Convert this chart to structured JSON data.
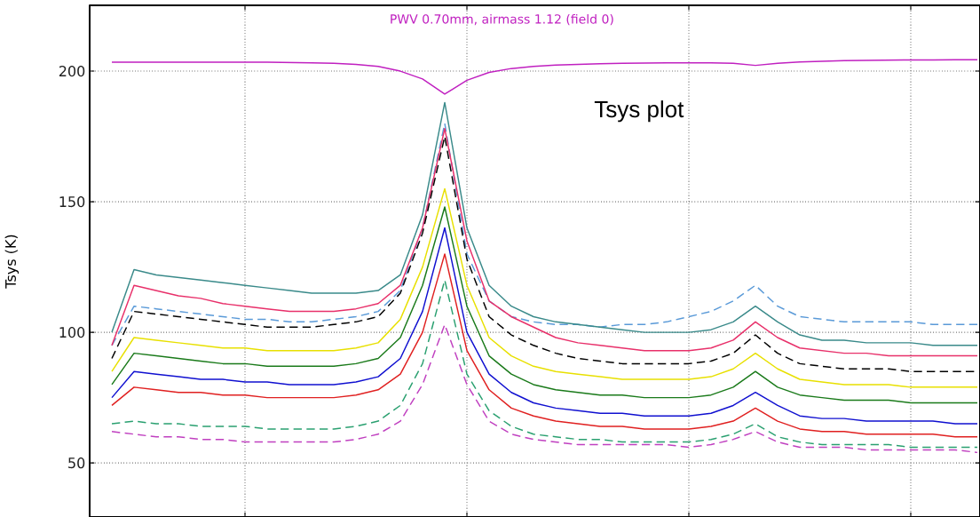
{
  "chart_data": {
    "type": "line",
    "ylabel": "Tsys (K)",
    "annotations": [
      "PWV 0.70mm, airmass 1.12 (field 0)",
      "Tsys plot"
    ],
    "categories": [
      null,
      null,
      null,
      null,
      null,
      null,
      null,
      null,
      null,
      null,
      null,
      null,
      null,
      null,
      null,
      null,
      null,
      null,
      null,
      null,
      null,
      null,
      null,
      null,
      null,
      null,
      null,
      null,
      null,
      null,
      null,
      null,
      null,
      null,
      null,
      null,
      null,
      null,
      null,
      null
    ],
    "ylim": [
      29.3,
      225.2
    ],
    "yticks": [
      50,
      100,
      150,
      200
    ],
    "grid": true,
    "tick_labels": "y",
    "marker": "none",
    "series": [
      {
        "color": "#c020c0",
        "values": [
          203.4,
          203.4,
          203.4,
          203.4,
          203.4,
          203.4,
          203.4,
          203.4,
          203.3,
          203.2,
          203.0,
          202.6,
          201.8,
          200.0,
          197.0,
          191.2,
          196.5,
          199.5,
          201.0,
          201.8,
          202.3,
          202.6,
          202.8,
          203.0,
          203.1,
          203.2,
          203.2,
          203.2,
          203.0,
          202.2,
          203.0,
          203.5,
          203.8,
          204.0,
          204.1,
          204.2,
          204.3,
          204.3,
          204.4,
          204.4
        ]
      },
      {
        "color": "#5a9ad8",
        "line_style": "dashed",
        "values": [
          95,
          110,
          109,
          108,
          107,
          106,
          105,
          105,
          104,
          104,
          105,
          106,
          108,
          116,
          140,
          180,
          130,
          112,
          106,
          104,
          103,
          103,
          102,
          103,
          103,
          104,
          106,
          108,
          112,
          118,
          110,
          106,
          105,
          104,
          104,
          104,
          104,
          103,
          103,
          103
        ]
      },
      {
        "color": "#3a8a8a",
        "values": [
          100,
          124,
          122,
          121,
          120,
          119,
          118,
          117,
          116,
          115,
          115,
          115,
          116,
          122,
          145,
          188,
          140,
          118,
          110,
          106,
          104,
          103,
          102,
          101,
          100,
          100,
          100,
          101,
          104,
          110,
          104,
          99,
          97,
          97,
          96,
          96,
          96,
          95,
          95,
          95
        ]
      },
      {
        "color": "#e8306a",
        "values": [
          95,
          118,
          116,
          114,
          113,
          111,
          110,
          109,
          108,
          108,
          108,
          109,
          111,
          118,
          140,
          178,
          135,
          112,
          106,
          102,
          98,
          96,
          95,
          94,
          93,
          93,
          93,
          94,
          97,
          104,
          98,
          94,
          93,
          92,
          92,
          91,
          91,
          91,
          91,
          91
        ]
      },
      {
        "color": "#000000",
        "line_style": "dashed",
        "values": [
          90,
          108,
          107,
          106,
          105,
          104,
          103,
          102,
          102,
          102,
          103,
          104,
          106,
          115,
          138,
          175,
          128,
          106,
          99,
          95,
          92,
          90,
          89,
          88,
          88,
          88,
          88,
          89,
          92,
          99,
          92,
          88,
          87,
          86,
          86,
          86,
          85,
          85,
          85,
          85
        ]
      },
      {
        "color": "#e8e000",
        "values": [
          85,
          98,
          97,
          96,
          95,
          94,
          94,
          93,
          93,
          93,
          93,
          94,
          96,
          105,
          125,
          155,
          118,
          98,
          91,
          87,
          85,
          84,
          83,
          82,
          82,
          82,
          82,
          83,
          86,
          92,
          86,
          82,
          81,
          80,
          80,
          80,
          79,
          79,
          79,
          79
        ]
      },
      {
        "color": "#1a7a1a",
        "values": [
          80,
          92,
          91,
          90,
          89,
          88,
          88,
          87,
          87,
          87,
          87,
          88,
          90,
          98,
          118,
          148,
          110,
          91,
          84,
          80,
          78,
          77,
          76,
          76,
          75,
          75,
          75,
          76,
          79,
          85,
          79,
          76,
          75,
          74,
          74,
          74,
          73,
          73,
          73,
          73
        ]
      },
      {
        "color": "#1010d0",
        "values": [
          75,
          85,
          84,
          83,
          82,
          82,
          81,
          81,
          80,
          80,
          80,
          81,
          83,
          90,
          108,
          140,
          100,
          84,
          77,
          73,
          71,
          70,
          69,
          69,
          68,
          68,
          68,
          69,
          72,
          77,
          72,
          68,
          67,
          67,
          66,
          66,
          66,
          66,
          65,
          65
        ]
      },
      {
        "color": "#e02020",
        "values": [
          72,
          79,
          78,
          77,
          77,
          76,
          76,
          75,
          75,
          75,
          75,
          76,
          78,
          84,
          100,
          130,
          93,
          78,
          71,
          68,
          66,
          65,
          64,
          64,
          63,
          63,
          63,
          64,
          66,
          71,
          66,
          63,
          62,
          62,
          61,
          61,
          61,
          61,
          60,
          60
        ]
      },
      {
        "color": "#2aa070",
        "line_style": "dashed",
        "values": [
          65,
          66,
          65,
          65,
          64,
          64,
          64,
          63,
          63,
          63,
          63,
          64,
          66,
          72,
          88,
          120,
          84,
          70,
          64,
          61,
          60,
          59,
          59,
          58,
          58,
          58,
          58,
          59,
          61,
          65,
          60,
          58,
          57,
          57,
          57,
          57,
          56,
          56,
          56,
          56
        ]
      },
      {
        "color": "#c040c0",
        "line_style": "dashed",
        "values": [
          62,
          61,
          60,
          60,
          59,
          59,
          58,
          58,
          58,
          58,
          58,
          59,
          61,
          66,
          80,
          103,
          80,
          66,
          61,
          59,
          58,
          57,
          57,
          57,
          57,
          57,
          56,
          57,
          59,
          62,
          58,
          56,
          56,
          56,
          55,
          55,
          55,
          55,
          55,
          54
        ]
      }
    ]
  }
}
